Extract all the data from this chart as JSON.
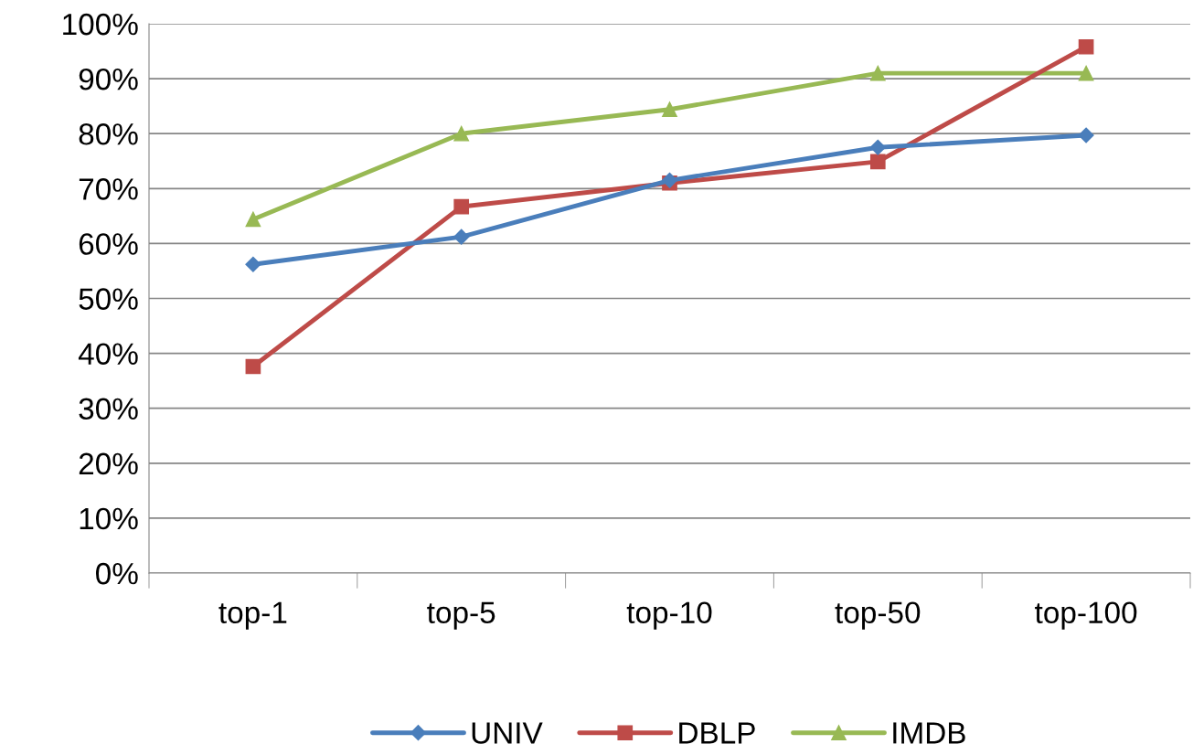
{
  "chart_data": {
    "type": "line",
    "categories": [
      "top-1",
      "top-5",
      "top-10",
      "top-50",
      "top-100"
    ],
    "series": [
      {
        "name": "UNIV",
        "color": "#4a7ebb",
        "marker": "diamond",
        "values": [
          56.2,
          61.2,
          71.5,
          77.5,
          79.7
        ]
      },
      {
        "name": "DBLP",
        "color": "#be4b48",
        "marker": "square",
        "values": [
          37.6,
          66.7,
          71.0,
          74.9,
          95.8
        ]
      },
      {
        "name": "IMDB",
        "color": "#98b954",
        "marker": "triangle",
        "values": [
          64.4,
          80.0,
          84.4,
          91.0,
          91.0
        ]
      }
    ],
    "ylim": [
      0,
      100
    ],
    "yticks": [
      {
        "value": 0,
        "label": "0%"
      },
      {
        "value": 10,
        "label": "10%"
      },
      {
        "value": 20,
        "label": "20%"
      },
      {
        "value": 30,
        "label": "30%"
      },
      {
        "value": 40,
        "label": "40%"
      },
      {
        "value": 50,
        "label": "50%"
      },
      {
        "value": 60,
        "label": "60%"
      },
      {
        "value": 70,
        "label": "70%"
      },
      {
        "value": 80,
        "label": "80%"
      },
      {
        "value": 90,
        "label": "90%"
      },
      {
        "value": 100,
        "label": "100%"
      }
    ],
    "grid": "y",
    "legend": "bottom",
    "line_style": "solid"
  }
}
